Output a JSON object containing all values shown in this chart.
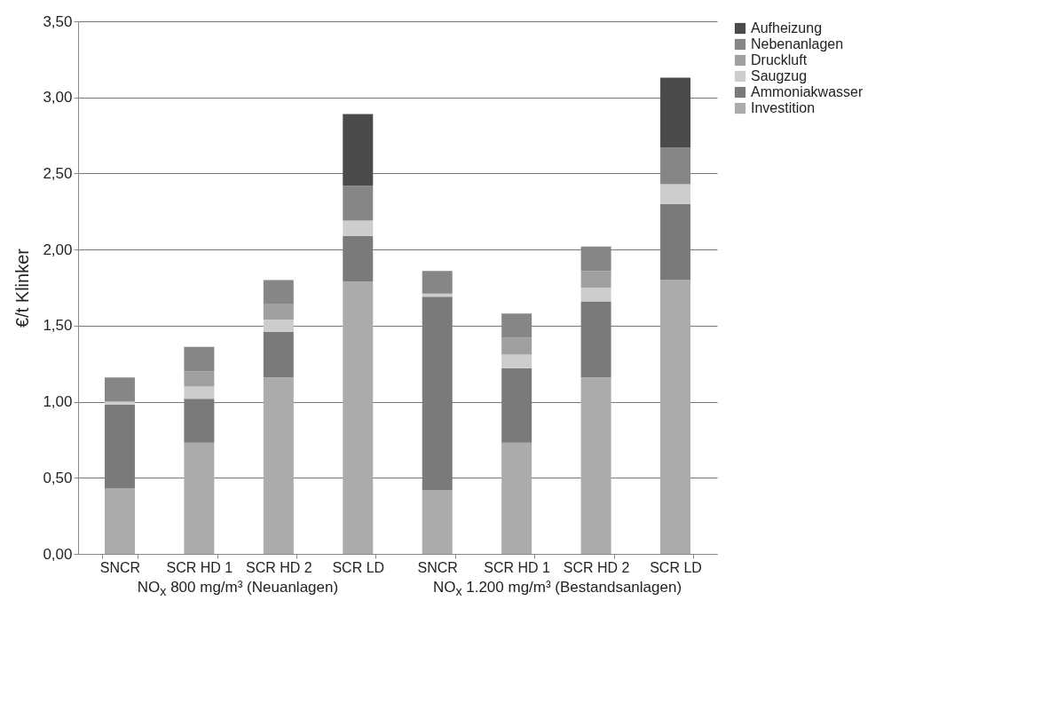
{
  "chart_data": {
    "type": "bar",
    "stacked": true,
    "ylabel": "€/t Klinker",
    "categories": [
      "SNCR",
      "SCR HD 1",
      "SCR HD 2",
      "SCR LD",
      "SNCR",
      "SCR HD 1",
      "SCR HD 2",
      "SCR LD"
    ],
    "series": [
      {
        "name": "Investition",
        "color": "#ababab",
        "values": [
          0.43,
          0.73,
          1.16,
          1.79,
          0.42,
          0.73,
          1.16,
          1.8
        ]
      },
      {
        "name": "Ammoniakwasser",
        "color": "#7a7a7a",
        "values": [
          0.55,
          0.29,
          0.3,
          0.3,
          1.27,
          0.49,
          0.5,
          0.5
        ]
      },
      {
        "name": "Saugzug",
        "color": "#cdcdcd",
        "values": [
          0.02,
          0.08,
          0.08,
          0.1,
          0.02,
          0.09,
          0.09,
          0.13
        ]
      },
      {
        "name": "Druckluft",
        "color": "#a0a0a0",
        "values": [
          null,
          0.1,
          0.1,
          null,
          null,
          0.11,
          0.11,
          null
        ]
      },
      {
        "name": "Nebenanlagen",
        "color": "#868686",
        "values": [
          0.16,
          0.16,
          0.16,
          0.23,
          0.15,
          0.16,
          0.16,
          0.24
        ]
      },
      {
        "name": "Aufheizung",
        "color": "#4a4a4a",
        "values": [
          null,
          null,
          null,
          0.47,
          null,
          null,
          null,
          0.46
        ]
      }
    ],
    "ylim": [
      0,
      3.5
    ],
    "yticks": [
      {
        "value": 0,
        "label": "0,00"
      },
      {
        "value": 0.5,
        "label": "0,50"
      },
      {
        "value": 1,
        "label": "1,00"
      },
      {
        "value": 1.5,
        "label": "1,50"
      },
      {
        "value": 2,
        "label": "2,00"
      },
      {
        "value": 2.5,
        "label": "2,50"
      },
      {
        "value": 3,
        "label": "3,00"
      },
      {
        "value": 3.5,
        "label": "3,50"
      }
    ],
    "grid": "y",
    "legend": "right",
    "annotations": [
      "NO$_{x}$ 800 mg/m³ (Neuanlagen)",
      "NO$_{x}$ 1.200 mg/m³ (Bestandsanlagen)"
    ]
  }
}
